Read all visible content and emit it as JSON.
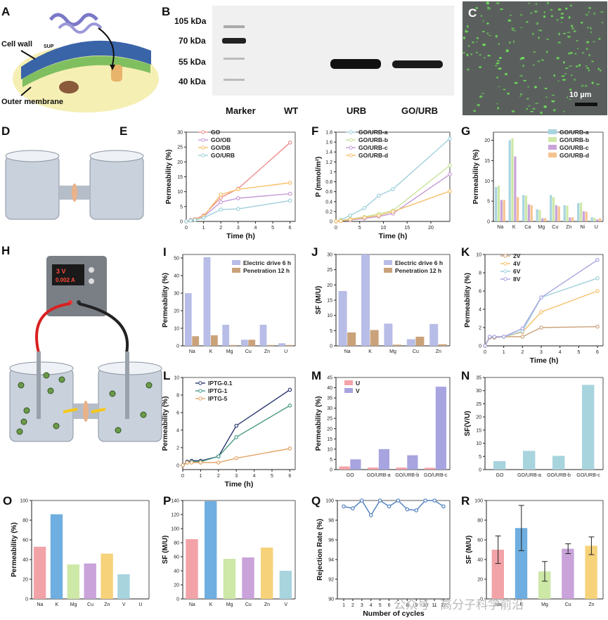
{
  "panels": {
    "A": {
      "letter": "A",
      "labels": [
        "Cell wall",
        "Outer membrane",
        "SUP"
      ]
    },
    "B": {
      "letter": "B",
      "markers": [
        "105 kDa",
        "70 kDa",
        "55 kDa",
        "40 kDa"
      ],
      "lanes": [
        "Marker",
        "WT",
        "URB",
        "GO/URB"
      ],
      "highlight_color": "#e53935"
    },
    "C": {
      "letter": "C",
      "scale": "10 µm"
    },
    "D": {
      "letter": "D"
    },
    "H": {
      "letter": "H",
      "display_v": "3 V",
      "display_a": "0.002 A"
    }
  },
  "watermark": "公众号 · 高分子科学前沿",
  "colors": {
    "pink": "#f2a3a8",
    "green": "#cde8a7",
    "purple": "#c9a3d9",
    "orange": "#f6c38f",
    "teal": "#a8d4de",
    "periwinkle": "#b7bde6",
    "brown": "#caa27a",
    "blue": "#6faee0",
    "yellow": "#f6d27a",
    "lavender": "#a7a4e0"
  },
  "chart_data": [
    {
      "id": "E",
      "letter": "E",
      "type": "line",
      "xlabel": "Time (h)",
      "ylabel": "Permeability (%)",
      "xlim": [
        0,
        6.3
      ],
      "ylim": [
        0,
        30
      ],
      "xticks": [
        0,
        1,
        2,
        3,
        4,
        5,
        6
      ],
      "yticks": [
        0,
        5,
        10,
        15,
        20,
        25,
        30
      ],
      "series": [
        {
          "name": "GO",
          "color": "#ef8d8d",
          "x": [
            0,
            0.25,
            0.5,
            1,
            2,
            3,
            6
          ],
          "y": [
            0,
            0.5,
            0.8,
            2,
            8,
            11,
            26.5
          ]
        },
        {
          "name": "GO/OB",
          "color": "#c59ad6",
          "x": [
            0,
            0.25,
            0.5,
            1,
            2,
            3,
            6
          ],
          "y": [
            0,
            0.4,
            0.8,
            1.6,
            6.5,
            7.8,
            9.3
          ]
        },
        {
          "name": "GO/DB",
          "color": "#f6c06a",
          "x": [
            0,
            0.25,
            0.5,
            1,
            2,
            3,
            6
          ],
          "y": [
            0,
            0.3,
            0.7,
            1.7,
            9,
            10.8,
            13
          ]
        },
        {
          "name": "GO/URB",
          "color": "#9fd0db",
          "x": [
            0,
            0.25,
            0.5,
            1,
            2,
            3,
            6
          ],
          "y": [
            0,
            0.3,
            0.5,
            1.2,
            4,
            4.2,
            7
          ]
        }
      ]
    },
    {
      "id": "F",
      "letter": "F",
      "type": "line",
      "xlabel": "Time (h)",
      "ylabel": "P (mmol/m²)",
      "xlim": [
        0,
        24
      ],
      "ylim": [
        0,
        1.8
      ],
      "xticks": [
        0,
        5,
        10,
        15,
        20
      ],
      "yticks": [
        0.0,
        0.2,
        0.4,
        0.6,
        0.8,
        1.0,
        1.2,
        1.4,
        1.6,
        1.8
      ],
      "series": [
        {
          "name": "GO/URB-a",
          "color": "#9fd0db",
          "x": [
            0,
            1,
            3,
            6,
            9,
            12,
            24
          ],
          "y": [
            0,
            0.03,
            0.12,
            0.27,
            0.52,
            0.65,
            1.67
          ]
        },
        {
          "name": "GO/URB-b",
          "color": "#c8e29a",
          "x": [
            0,
            1,
            3,
            6,
            9,
            12,
            24
          ],
          "y": [
            0,
            0.02,
            0.05,
            0.09,
            0.15,
            0.22,
            1.13
          ]
        },
        {
          "name": "GO/URB-c",
          "color": "#c59ad6",
          "x": [
            0,
            1,
            3,
            6,
            9,
            12,
            24
          ],
          "y": [
            0,
            0.01,
            0.03,
            0.06,
            0.1,
            0.16,
            0.95
          ]
        },
        {
          "name": "GO/URB-d",
          "color": "#f6c06a",
          "x": [
            0,
            1,
            3,
            6,
            9,
            12,
            24
          ],
          "y": [
            0,
            0.01,
            0.04,
            0.08,
            0.12,
            0.2,
            0.61
          ]
        }
      ]
    },
    {
      "id": "G",
      "letter": "G",
      "type": "bar",
      "xlabel": "",
      "ylabel": "Permeability (%)",
      "ylim": [
        0,
        22
      ],
      "yticks": [
        0,
        5,
        10,
        15,
        20
      ],
      "categories": [
        "Na",
        "K",
        "Ca",
        "Mg",
        "Cu",
        "Zn",
        "Ni",
        "U"
      ],
      "series": [
        {
          "name": "GO/URB-a",
          "color": "#a8d4de",
          "values": [
            8.5,
            20,
            6.5,
            3,
            6.5,
            4,
            4.5,
            1
          ]
        },
        {
          "name": "GO/URB-b",
          "color": "#cde8a7",
          "values": [
            8.8,
            20.5,
            6.4,
            2.8,
            6,
            3.9,
            4.6,
            0.9
          ]
        },
        {
          "name": "GO/URB-c",
          "color": "#c9a3d9",
          "values": [
            5.3,
            16,
            4.2,
            0.8,
            4,
            1,
            2.5,
            0.5
          ]
        },
        {
          "name": "GO/URB-d",
          "color": "#f6c38f",
          "values": [
            5.3,
            6,
            4,
            0.8,
            3.7,
            1,
            2.4,
            0.8
          ]
        }
      ]
    },
    {
      "id": "I",
      "letter": "I",
      "type": "bar",
      "xlabel": "",
      "ylabel": "Permeability (%)",
      "ylim": [
        0,
        52
      ],
      "yticks": [
        0,
        10,
        20,
        30,
        40,
        50
      ],
      "categories": [
        "Na",
        "K",
        "Mg",
        "Cu",
        "Zn",
        "U"
      ],
      "series": [
        {
          "name": "Electric drive 6 h",
          "color": "#b7bde6",
          "values": [
            30,
            50.5,
            12,
            3.5,
            12,
            1.5
          ]
        },
        {
          "name": "Penetration 12 h",
          "color": "#caa27a",
          "values": [
            5.5,
            6,
            0.5,
            3.5,
            0.5,
            0.5
          ]
        }
      ]
    },
    {
      "id": "J",
      "letter": "J",
      "type": "bar",
      "xlabel": "",
      "ylabel": "SF (M/U)",
      "ylim": [
        0,
        30
      ],
      "yticks": [
        0,
        5,
        10,
        15,
        20,
        25,
        30
      ],
      "categories": [
        "Na",
        "K",
        "Mg",
        "Cu",
        "Zn"
      ],
      "series": [
        {
          "name": "Electric drive 6 h",
          "color": "#b7bde6",
          "values": [
            18,
            30,
            7.3,
            2.2,
            7.2
          ]
        },
        {
          "name": "Penetration 12 h",
          "color": "#caa27a",
          "values": [
            4.4,
            5.2,
            0.4,
            3,
            0.5
          ]
        }
      ]
    },
    {
      "id": "K",
      "letter": "K",
      "type": "line",
      "xlabel": "Time (h)",
      "ylabel": "Permeability (%)",
      "xlim": [
        0,
        6.3
      ],
      "ylim": [
        0,
        10
      ],
      "xticks": [
        0,
        1,
        2,
        3,
        4,
        5,
        6
      ],
      "yticks": [
        0,
        2,
        4,
        6,
        8,
        10
      ],
      "series": [
        {
          "name": "2V",
          "color": "#caa27a",
          "x": [
            0,
            0.25,
            0.5,
            1,
            2,
            3,
            6
          ],
          "y": [
            0,
            0.9,
            0.9,
            1,
            1,
            2,
            2.1
          ]
        },
        {
          "name": "4V",
          "color": "#f6c06a",
          "x": [
            0,
            0.25,
            0.5,
            1,
            2,
            3,
            6
          ],
          "y": [
            0,
            1,
            1,
            1,
            1.5,
            3.7,
            6
          ]
        },
        {
          "name": "6V",
          "color": "#9fd0db",
          "x": [
            0,
            0.25,
            0.5,
            1,
            2,
            3,
            6
          ],
          "y": [
            0,
            1,
            1,
            1,
            1.6,
            5.3,
            7.4
          ]
        },
        {
          "name": "8V",
          "color": "#a7a4e0",
          "x": [
            0,
            0.25,
            0.5,
            1,
            2,
            3,
            6
          ],
          "y": [
            0,
            1,
            1,
            1,
            1.9,
            5.3,
            9.4
          ]
        }
      ]
    },
    {
      "id": "L",
      "letter": "L",
      "type": "line",
      "xlabel": "Time (h)",
      "ylabel": "Permeability (%)",
      "xlim": [
        0,
        6.3
      ],
      "ylim": [
        -0.5,
        10
      ],
      "xticks": [
        0,
        1,
        2,
        3,
        4,
        5,
        6
      ],
      "yticks": [
        0,
        2,
        4,
        6,
        8,
        10
      ],
      "series": [
        {
          "name": "IPTG-0.1",
          "color": "#2d3a6e",
          "x": [
            0,
            0.25,
            0.5,
            1,
            2,
            3,
            6
          ],
          "y": [
            0,
            0.4,
            0.5,
            0.5,
            1,
            4.5,
            8.6
          ]
        },
        {
          "name": "IPTG-1",
          "color": "#4a9a85",
          "x": [
            0,
            0.25,
            0.5,
            1,
            2,
            3,
            6
          ],
          "y": [
            0,
            0.3,
            0.4,
            0.4,
            1,
            3.2,
            6.8
          ]
        },
        {
          "name": "IPTG-5",
          "color": "#e3a466",
          "x": [
            0,
            0.25,
            0.5,
            1,
            2,
            3,
            6
          ],
          "y": [
            0,
            0.3,
            0.3,
            0.3,
            0.3,
            0.8,
            1.9
          ]
        }
      ]
    },
    {
      "id": "M",
      "letter": "M",
      "type": "bar",
      "xlabel": "",
      "ylabel": "Permeability (%)",
      "ylim": [
        0,
        45
      ],
      "yticks": [
        0,
        5,
        10,
        15,
        20,
        25,
        30,
        35,
        40,
        45
      ],
      "categories": [
        "GO",
        "GO/URB-a",
        "GO/URB-b",
        "GO/URB-c"
      ],
      "series": [
        {
          "name": "U",
          "color": "#f2a3a8",
          "values": [
            1.5,
            1,
            1,
            0.9
          ]
        },
        {
          "name": "V",
          "color": "#a7a4e0",
          "values": [
            5,
            10,
            7,
            40.5
          ]
        }
      ]
    },
    {
      "id": "N",
      "letter": "N",
      "type": "bar",
      "xlabel": "",
      "ylabel": "SF(V/U)",
      "ylim": [
        0,
        35
      ],
      "yticks": [
        0,
        5,
        10,
        15,
        20,
        25,
        30,
        35
      ],
      "categories": [
        "GO",
        "GO/URB-a",
        "GO/URB-b",
        "GO/URB-c"
      ],
      "series": [
        {
          "name": "SF(V/U)",
          "color": "#a8d4de",
          "values": [
            3.2,
            7.1,
            5.2,
            32.2
          ]
        }
      ]
    },
    {
      "id": "O",
      "letter": "O",
      "type": "bar",
      "xlabel": "",
      "ylabel": "Permeability (%)",
      "ylim": [
        0,
        100
      ],
      "yticks": [
        0,
        20,
        40,
        60,
        80,
        100
      ],
      "categories": [
        "Na",
        "K",
        "Mg",
        "Cu",
        "Zn",
        "V",
        "U"
      ],
      "colors": [
        "#f2a3a8",
        "#6faee0",
        "#cde8a7",
        "#c9a3d9",
        "#f6d27a",
        "#a8d4de",
        "#a8d4de"
      ],
      "values": [
        53,
        86,
        35,
        36,
        46,
        25,
        0
      ]
    },
    {
      "id": "P",
      "letter": "P",
      "type": "bar",
      "xlabel": "",
      "ylabel": "SF (M/U)",
      "ylim": [
        0,
        140
      ],
      "yticks": [
        0,
        20,
        40,
        60,
        80,
        100,
        120,
        140
      ],
      "categories": [
        "Na",
        "K",
        "Mg",
        "Cu",
        "Zn",
        "V"
      ],
      "colors": [
        "#f2a3a8",
        "#6faee0",
        "#cde8a7",
        "#c9a3d9",
        "#f6d27a",
        "#a8d4de"
      ],
      "values": [
        85,
        139,
        57,
        59,
        73,
        40
      ]
    },
    {
      "id": "Q",
      "letter": "Q",
      "type": "line",
      "xlabel": "Number of cycles",
      "ylabel": "Rejection Rate (%)",
      "xlim": [
        0.3,
        12.7
      ],
      "ylim": [
        90,
        100
      ],
      "xticks": [
        1,
        2,
        3,
        4,
        5,
        6,
        7,
        8,
        9,
        10,
        11,
        12
      ],
      "yticks": [
        90,
        92,
        94,
        96,
        98,
        100
      ],
      "series": [
        {
          "name": "Rejection",
          "color": "#4f7fbf",
          "x": [
            1,
            2,
            3,
            4,
            5,
            6,
            7,
            8,
            9,
            10,
            11,
            12
          ],
          "y": [
            99.4,
            99.2,
            100,
            98.5,
            100,
            99.4,
            100,
            99.1,
            99,
            100,
            100,
            99.4
          ]
        }
      ]
    },
    {
      "id": "R",
      "letter": "R",
      "type": "bar",
      "xlabel": "",
      "ylabel": "SF (M/U)",
      "ylim": [
        0,
        100
      ],
      "yticks": [
        0,
        20,
        40,
        60,
        80,
        100
      ],
      "categories": [
        "Na",
        "K",
        "Mg",
        "Cu",
        "Zn"
      ],
      "colors": [
        "#f2a3a8",
        "#6faee0",
        "#cde8a7",
        "#c9a3d9",
        "#f6d27a"
      ],
      "values": [
        50,
        72,
        28,
        51,
        54
      ],
      "errors": [
        14,
        23,
        10,
        5,
        9
      ]
    }
  ]
}
